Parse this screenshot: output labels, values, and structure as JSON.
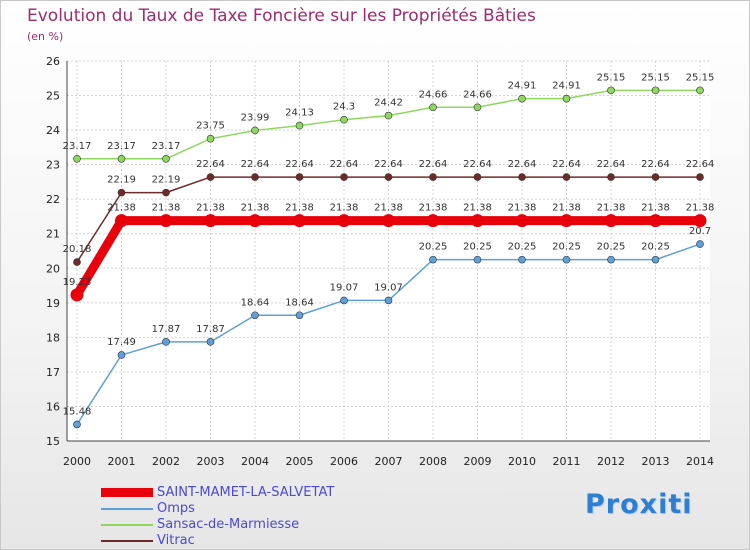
{
  "title": "Evolution du Taux de Taxe Foncière sur les Propriétés Bâties",
  "subtitle": "(en %)",
  "logo_text": "Proxiti",
  "chart_data": {
    "type": "line",
    "title": "Evolution du Taux de Taxe Foncière sur les Propriétés Bâties",
    "ylabel": "(en %)",
    "xlabel": "",
    "x": [
      2000,
      2001,
      2002,
      2003,
      2004,
      2005,
      2006,
      2007,
      2008,
      2009,
      2010,
      2011,
      2012,
      2013,
      2014
    ],
    "ylim": [
      15,
      26
    ],
    "yticks": [
      15,
      16,
      17,
      18,
      19,
      20,
      21,
      22,
      23,
      24,
      25,
      26
    ],
    "grid": true,
    "legend_position": "bottom-left",
    "series": [
      {
        "name": "SAINT-MAMET-LA-SALVETAT",
        "color": "#e8000b",
        "values": [
          19.23,
          21.38,
          21.38,
          21.38,
          21.38,
          21.38,
          21.38,
          21.38,
          21.38,
          21.38,
          21.38,
          21.38,
          21.38,
          21.38,
          21.38
        ],
        "labels": [
          "19.23",
          "21.38",
          "21.38",
          "21.38",
          "21.38",
          "21.38",
          "21.38",
          "21.38",
          "21.38",
          "21.38",
          "21.38",
          "21.38",
          "21.38",
          "21.38",
          "21.38"
        ]
      },
      {
        "name": "Omps",
        "color": "#5ea0d8",
        "values": [
          15.48,
          17.49,
          17.87,
          17.87,
          18.64,
          18.64,
          19.07,
          19.07,
          20.25,
          20.25,
          20.25,
          20.25,
          20.25,
          20.25,
          20.7
        ],
        "labels": [
          "15.48",
          "17.49",
          "17.87",
          "17.87",
          "18.64",
          "18.64",
          "19.07",
          "19.07",
          "20.25",
          "20.25",
          "20.25",
          "20.25",
          "20.25",
          "20.25",
          "20.7"
        ]
      },
      {
        "name": "Sansac-de-Marmiesse",
        "color": "#8fd860",
        "values": [
          23.17,
          23.17,
          23.17,
          23.75,
          23.99,
          24.13,
          24.3,
          24.42,
          24.66,
          24.66,
          24.91,
          24.91,
          25.15,
          25.15,
          25.15
        ],
        "labels": [
          "23.17",
          "23.17",
          "23.17",
          "23.75",
          "23.99",
          "24.13",
          "24.3",
          "24.42",
          "24.66",
          "24.66",
          "24.91",
          "24.91",
          "25.15",
          "25.15",
          "25.15"
        ]
      },
      {
        "name": "Vitrac",
        "color": "#6e2a2a",
        "values": [
          20.18,
          22.19,
          22.19,
          22.64,
          22.64,
          22.64,
          22.64,
          22.64,
          22.64,
          22.64,
          22.64,
          22.64,
          22.64,
          22.64,
          22.64
        ],
        "labels": [
          "20.18",
          "22.19",
          "22.19",
          "22.64",
          "22.64",
          "22.64",
          "22.64",
          "22.64",
          "22.64",
          "22.64",
          "22.64",
          "22.64",
          "22.64",
          "22.64",
          "22.64"
        ]
      }
    ]
  },
  "legend": [
    {
      "label": "SAINT-MAMET-LA-SALVETAT",
      "color": "#e8000b"
    },
    {
      "label": "Omps",
      "color": "#5ea0d8"
    },
    {
      "label": "Sansac-de-Marmiesse",
      "color": "#8fd860"
    },
    {
      "label": "Vitrac",
      "color": "#6e2a2a"
    }
  ]
}
